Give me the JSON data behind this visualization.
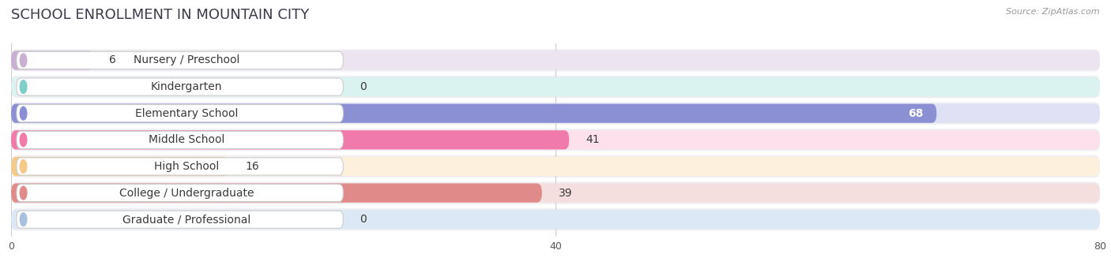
{
  "title": "SCHOOL ENROLLMENT IN MOUNTAIN CITY",
  "source": "Source: ZipAtlas.com",
  "categories": [
    "Nursery / Preschool",
    "Kindergarten",
    "Elementary School",
    "Middle School",
    "High School",
    "College / Undergraduate",
    "Graduate / Professional"
  ],
  "values": [
    6,
    0,
    68,
    41,
    16,
    39,
    0
  ],
  "bar_colors": [
    "#c9afd4",
    "#7ecec9",
    "#8b8fd4",
    "#f07aaa",
    "#f5c98a",
    "#e08a8a",
    "#a8c0e0"
  ],
  "bar_bg_colors": [
    "#ece5f0",
    "#daf2f0",
    "#e0e1f5",
    "#fce0ec",
    "#fdf0dc",
    "#f5dede",
    "#dce8f5"
  ],
  "row_bg_color": "#f0f0f5",
  "xlim_max": 80,
  "xticks": [
    0,
    40,
    80
  ],
  "title_fontsize": 13,
  "label_fontsize": 10,
  "value_fontsize": 10,
  "title_color": "#3a3a4a",
  "label_color": "#3a3a3a",
  "source_color": "#999999",
  "grid_color": "#cccccc",
  "row_sep_color": "#e0e0e8"
}
